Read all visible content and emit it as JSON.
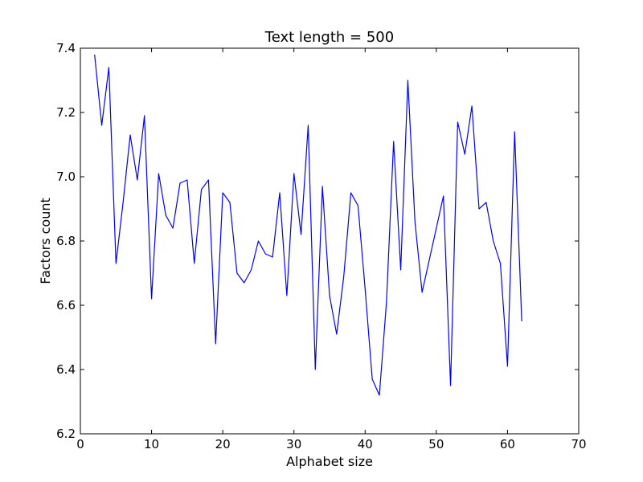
{
  "chart_data": {
    "type": "line",
    "title": "Text length = 500",
    "xlabel": "Alphabet size",
    "ylabel": "Factors count",
    "xlim": [
      0,
      70
    ],
    "ylim": [
      6.2,
      7.4
    ],
    "xticks": [
      0,
      10,
      20,
      30,
      40,
      50,
      60,
      70
    ],
    "yticks": [
      6.2,
      6.4,
      6.6,
      6.8,
      7.0,
      7.2,
      7.4
    ],
    "xtick_labels": [
      "0",
      "10",
      "20",
      "30",
      "40",
      "50",
      "60",
      "70"
    ],
    "ytick_labels": [
      "6.2",
      "6.4",
      "6.6",
      "6.8",
      "7.0",
      "7.2",
      "7.4"
    ],
    "grid": false,
    "line_color": "#0000ff",
    "series": [
      {
        "x": [
          2,
          3,
          4,
          5,
          6,
          7,
          8,
          9,
          10,
          11,
          12,
          13,
          14,
          15,
          16,
          17,
          18,
          19,
          20,
          21,
          22,
          23,
          24,
          25,
          26,
          27,
          28,
          29,
          30,
          31,
          32,
          33,
          34,
          35,
          36,
          37,
          38,
          39,
          40,
          41,
          42,
          43,
          44,
          45,
          46,
          47,
          48,
          49,
          50,
          51,
          52,
          53,
          54,
          55,
          56,
          57,
          58,
          59,
          60,
          61,
          62
        ],
        "values": [
          7.38,
          7.16,
          7.34,
          6.73,
          6.92,
          7.13,
          6.99,
          7.19,
          6.62,
          7.01,
          6.88,
          6.84,
          6.98,
          6.99,
          6.73,
          6.96,
          6.99,
          6.48,
          6.95,
          6.92,
          6.7,
          6.67,
          6.71,
          6.8,
          6.76,
          6.75,
          6.95,
          6.63,
          7.01,
          6.82,
          7.16,
          6.4,
          6.97,
          6.63,
          6.51,
          6.69,
          6.95,
          6.91,
          6.65,
          6.37,
          6.32,
          6.61,
          7.11,
          6.71,
          7.3,
          6.86,
          6.64,
          6.74,
          6.84,
          6.94,
          6.35,
          7.17,
          7.07,
          7.22,
          6.9,
          6.92,
          6.8,
          6.73,
          6.41,
          7.14,
          6.55
        ]
      }
    ]
  }
}
